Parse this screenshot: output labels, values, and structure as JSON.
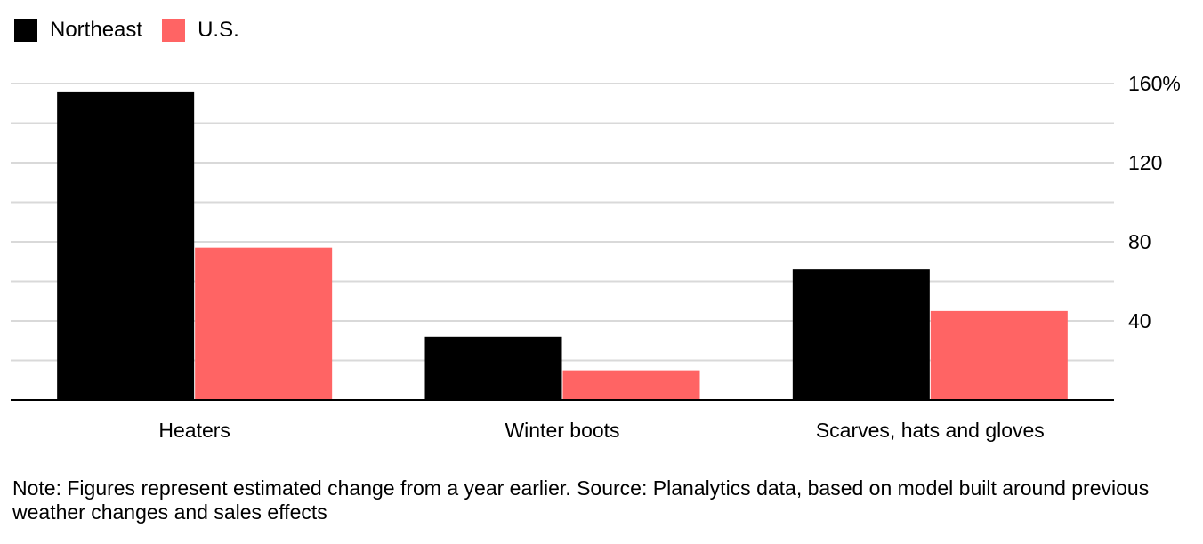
{
  "legend": {
    "items": [
      {
        "label": "Northeast",
        "color": "#000000"
      },
      {
        "label": "U.S.",
        "color": "#ff6464"
      }
    ]
  },
  "chart_data": {
    "type": "bar",
    "categories": [
      "Heaters",
      "Winter boots",
      "Scarves, hats and gloves"
    ],
    "series": [
      {
        "name": "Northeast",
        "color": "#000000",
        "values": [
          156,
          32,
          66
        ]
      },
      {
        "name": "U.S.",
        "color": "#ff6464",
        "values": [
          77,
          15,
          45
        ]
      }
    ],
    "y_ticks": [
      {
        "value": 160,
        "label": "160%"
      },
      {
        "value": 120,
        "label": "120"
      },
      {
        "value": 80,
        "label": "80"
      },
      {
        "value": 40,
        "label": "40"
      }
    ],
    "ylim": [
      0,
      160
    ],
    "gridlines_every": 20,
    "grid": true,
    "y_axis_position": "right",
    "legend_position": "top-left",
    "title": "",
    "xlabel": "",
    "ylabel": ""
  },
  "note": "Note: Figures represent estimated change from a year earlier. Source: Planalytics data, based on model built around previous weather changes and sales effects"
}
